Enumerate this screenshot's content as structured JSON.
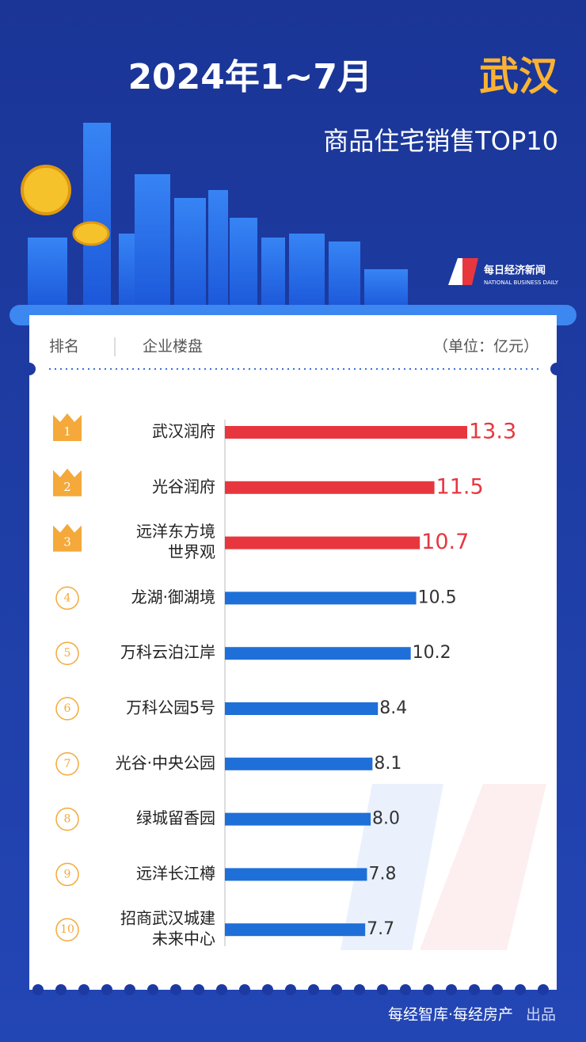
{
  "chart_data": {
    "type": "bar",
    "orientation": "horizontal",
    "title": "2024年1~7月",
    "title_highlight": "武汉",
    "subtitle": "商品住宅销售TOP10",
    "logo": "每日经济新闻",
    "logo_sub": "NATIONAL BUSINESS DAILY",
    "header": {
      "rank": "排名",
      "name": "企业楼盘",
      "unit": "（单位：亿元）"
    },
    "ranks": [
      "1",
      "2",
      "3",
      "4",
      "5",
      "6",
      "7",
      "8",
      "9",
      "10"
    ],
    "categories": [
      [
        "武汉润府"
      ],
      [
        "光谷润府"
      ],
      [
        "远洋东方境",
        "世界观"
      ],
      [
        "龙湖·御湖境"
      ],
      [
        "万科云泊江岸"
      ],
      [
        "万科公园5号"
      ],
      [
        "光谷·中央公园"
      ],
      [
        "绿城留香园"
      ],
      [
        "远洋长江樽"
      ],
      [
        "招商武汉城建",
        "未来中心"
      ]
    ],
    "values": [
      13.3,
      11.5,
      10.7,
      10.5,
      10.2,
      8.4,
      8.1,
      8.0,
      7.8,
      7.7
    ],
    "value_labels": [
      "13.3",
      "11.5",
      "10.7",
      "10.5",
      "10.2",
      "8.4",
      "8.1",
      "8.0",
      "7.8",
      "7.7"
    ],
    "colors": [
      "#e8363f",
      "#e8363f",
      "#e8363f",
      "#1f6fd8",
      "#1f6fd8",
      "#1f6fd8",
      "#1f6fd8",
      "#1f6fd8",
      "#1f6fd8",
      "#1f6fd8"
    ],
    "footer": "每经智库·每经房产",
    "footer_note": "出品"
  }
}
